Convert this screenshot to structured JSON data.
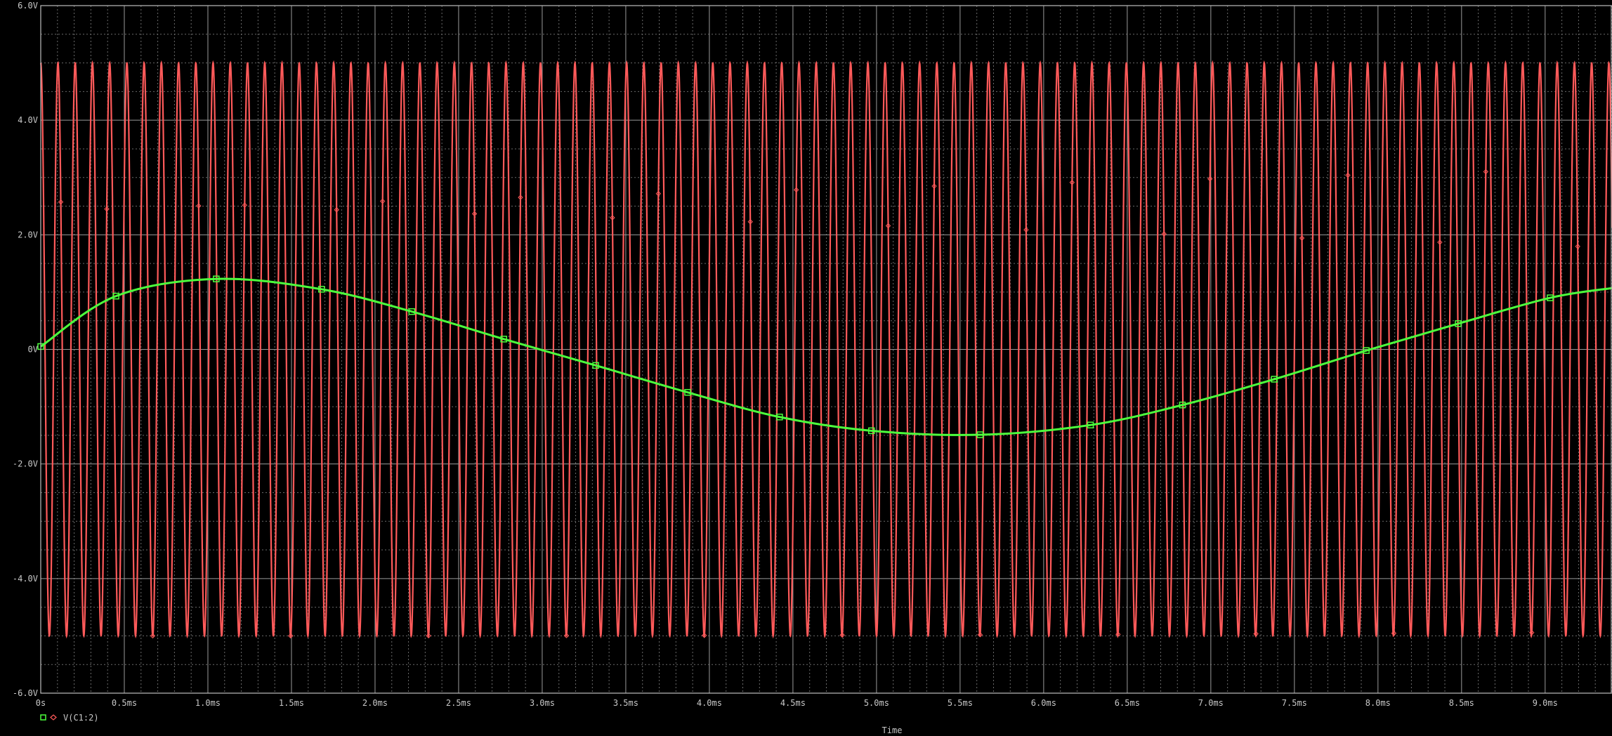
{
  "chart_data": {
    "type": "line",
    "xlabel": "Time",
    "ylabel": "",
    "xlim": [
      0,
      9.4
    ],
    "ylim": [
      -6,
      6
    ],
    "x_unit": "ms",
    "y_unit": "V",
    "x_ticks": [
      {
        "v": 0,
        "label": "0s"
      },
      {
        "v": 0.5,
        "label": "0.5ms"
      },
      {
        "v": 1.0,
        "label": "1.0ms"
      },
      {
        "v": 1.5,
        "label": "1.5ms"
      },
      {
        "v": 2.0,
        "label": "2.0ms"
      },
      {
        "v": 2.5,
        "label": "2.5ms"
      },
      {
        "v": 3.0,
        "label": "3.0ms"
      },
      {
        "v": 3.5,
        "label": "3.5ms"
      },
      {
        "v": 4.0,
        "label": "4.0ms"
      },
      {
        "v": 4.5,
        "label": "4.5ms"
      },
      {
        "v": 5.0,
        "label": "5.0ms"
      },
      {
        "v": 5.5,
        "label": "5.5ms"
      },
      {
        "v": 6.0,
        "label": "6.0ms"
      },
      {
        "v": 6.5,
        "label": "6.5ms"
      },
      {
        "v": 7.0,
        "label": "7.0ms"
      },
      {
        "v": 7.5,
        "label": "7.5ms"
      },
      {
        "v": 8.0,
        "label": "8.0ms"
      },
      {
        "v": 8.5,
        "label": "8.5ms"
      },
      {
        "v": 9.0,
        "label": "9.0ms"
      }
    ],
    "y_ticks": [
      {
        "v": 6,
        "label": "6.0V"
      },
      {
        "v": 4,
        "label": "4.0V"
      },
      {
        "v": 2,
        "label": "2.0V"
      },
      {
        "v": 0,
        "label": "0V"
      },
      {
        "v": -2,
        "label": "-2.0V"
      },
      {
        "v": -4,
        "label": "-4.0V"
      },
      {
        "v": -6,
        "label": "-6.0V"
      }
    ],
    "grid": true,
    "legend_position": "bottom-left",
    "series": [
      {
        "name": "V(C1:2)",
        "color": "#4cff3c",
        "marker": "square",
        "x": [
          0,
          0.45,
          1.05,
          1.68,
          2.22,
          2.77,
          3.32,
          3.87,
          4.42,
          4.97,
          5.62,
          6.28,
          6.83,
          7.38,
          7.93,
          8.48,
          9.03,
          9.4
        ],
        "values": [
          0.05,
          0.93,
          1.23,
          1.05,
          0.66,
          0.18,
          -0.28,
          -0.75,
          -1.18,
          -1.42,
          -1.49,
          -1.32,
          -0.97,
          -0.52,
          -0.02,
          0.45,
          0.9,
          1.07
        ]
      },
      {
        "name": "",
        "color": "#ff5a5a",
        "marker": "diamond",
        "waveform": "sine",
        "amplitude": 5.0,
        "offset": 0.0,
        "cycles_visible": 91,
        "frequency_kHz": 9.7,
        "phase_deg": 90
      }
    ]
  },
  "legend": {
    "label": "V(C1:2)",
    "square_icon": "square-marker-icon",
    "diamond_icon": "diamond-marker-icon"
  },
  "xaxis_title": "Time"
}
